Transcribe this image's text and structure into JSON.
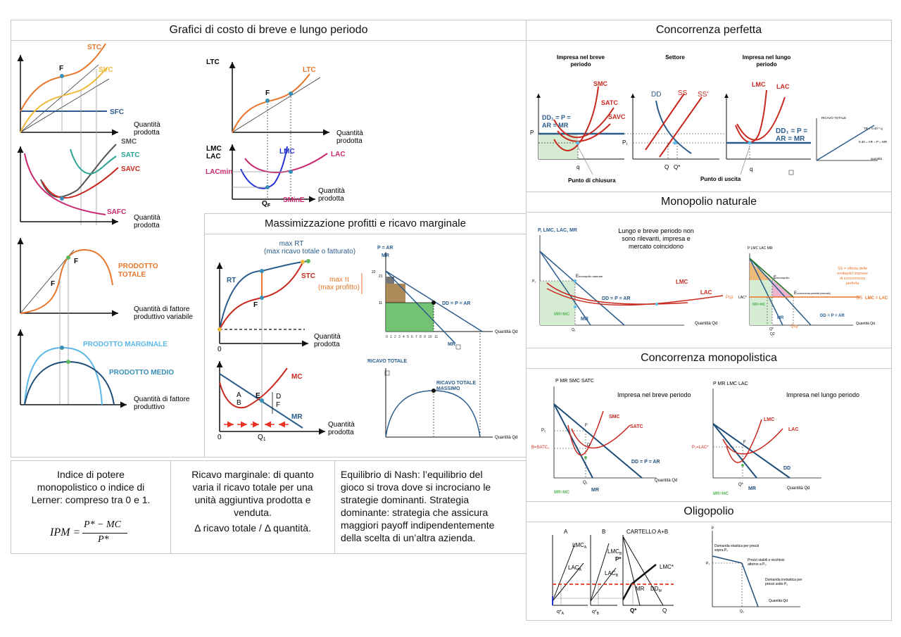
{
  "colors": {
    "orange": "#e8762b",
    "red": "#c8281e",
    "blue": "#2a5c8c",
    "teal": "#2aa394",
    "cyan": "#5bb8e8",
    "magenta": "#c8286e",
    "green": "#5cb85c",
    "yellow": "#f0b93b",
    "darkblue": "#1f4e79"
  },
  "panels": {
    "costs": {
      "title": "Grafici di costo di breve e lungo periodo",
      "stc": "STC",
      "svc": "SVC",
      "sfc": "SFC",
      "f": "F",
      "q_prod": [
        "Quantità",
        "prodotta"
      ],
      "smc": "SMC",
      "satc": "SATC",
      "savc": "SAVC",
      "safc": "SAFC",
      "prod_totale": [
        "PRODOTTO",
        "TOTALE"
      ],
      "q_fattore_var": [
        "Quantità di fattore",
        "produttivo variabile"
      ],
      "prod_marginale": "PRODOTTO MARGINALE",
      "prod_medio": "PRODOTTO MEDIO",
      "q_fattore": [
        "Quantità di fattore",
        "produttivo"
      ],
      "ltc": "LTC",
      "lmc_lac": [
        "LMC",
        "LAC"
      ],
      "lmc": "LMC",
      "lac": "LAC",
      "lacmin": "LACmin",
      "qf": "Q",
      "qf_sub": "F",
      "sminE": "SMinE"
    },
    "profit": {
      "title": "Massimizzazione profitti e ricavo marginale",
      "max_rt": [
        "max RT",
        "(max ricavo totale o fatturato)"
      ],
      "rt": "RT",
      "stc": "STC",
      "f": "F",
      "zero": "0",
      "max_pi": [
        "max π",
        "(max profitto)"
      ],
      "mc": "MC",
      "mr": "MR",
      "e": "E",
      "a": "A",
      "b": "B",
      "d": "D",
      "ff": "F",
      "q1": "Q",
      "q1_sub": "1",
      "p_ar": "P = AR",
      "mr_lbl": "MR",
      "dd": "DD = P = AR",
      "qd": "Quantità Qd",
      "ricavo_totale": "RICAVO TOTALE",
      "rt_massimo": [
        "RICAVO TOTALE",
        "MASSIMO"
      ],
      "ticks_y": [
        "22",
        "21",
        "11"
      ],
      "ticks_x": [
        "0",
        "1",
        "2",
        "3",
        "4",
        "5",
        "6",
        "7",
        "8",
        "9",
        "10",
        "11"
      ]
    },
    "perfect": {
      "title": "Concorrenza perfetta",
      "h1": [
        "Impresa nel breve",
        "periodo"
      ],
      "h2": "Settore",
      "h3": [
        "Impresa nel lungo",
        "periodo"
      ],
      "smc": "SMC",
      "satc": "SATC",
      "savc": "SAVC",
      "dd1": [
        "DD₁ = P =",
        "AR = MR"
      ],
      "p": "P",
      "q": "q",
      "punto_chiusura": "Punto di chiusura",
      "dd": "DD",
      "ss": "SS",
      "ss2": "SS'",
      "p1": "P₁",
      "qq": "Q",
      "qstar": "Q*",
      "lmc": "LMC",
      "lac": "LAC",
      "dd1b": [
        "DD₁ = P =",
        "AR = MR"
      ],
      "punto_uscita": "Punto di uscita",
      "ricavo_totale": "RICAVO TOTALE",
      "tr": "TR = 0,40 * q",
      "avg": "0,40 = AR = P = MR",
      "quantita": "quantità"
    },
    "natural": {
      "title": "Monopolio naturale",
      "yaxis": "P, LMC, LAC, MR",
      "note": [
        "Lungo e breve periodo non",
        "sono rilevanti, impresa e",
        "mercato coincidono"
      ],
      "emon": "E",
      "emon_sub": "monopolio naturale",
      "lmc": "LMC",
      "lac": "LAC",
      "dd": "DD = P = AR",
      "mr": "MR",
      "mrmc": "MR=MC",
      "pcp": "Pcp",
      "qd": "Quantità Qd",
      "p1": "P₁",
      "q1": "Q₁",
      "yaxis2": "P LMC LAC MR",
      "ss": [
        "SS = offerta delle",
        "molteplici imprese",
        "di concorrenza",
        "perfetta"
      ],
      "ss_lbl": "SS",
      "lmc_lac": "LMC = LAC",
      "lac_star": "LAC*",
      "emon2": "E",
      "emon2_sub": "monopolio",
      "ecp": "E",
      "ecp_sub": "concorrenza perfetta (mercato)",
      "dd2": "DD = P = AR",
      "mr2": "MR",
      "mrmc2": "MR=MC",
      "qstar": "Q*",
      "qcp": "Qcp",
      "q2": "Q2"
    },
    "monop": {
      "title": "Concorrenza monopolistica",
      "yaxis1": "P MR SMC SATC",
      "h1": "Impresa nel breve periodo",
      "smc": "SMC",
      "satc": "SATC",
      "f": "F",
      "d": "D",
      "p1": "P₁",
      "bsatc": "B=SATC₁",
      "dd": "DD = P = AR",
      "mrmc": "MR=MC",
      "q1": "Q₁",
      "mr": "MR",
      "qd": "Quantità Qd",
      "yaxis2": "P MR LMC LAC",
      "h2": "Impresa nel lungo periodo",
      "lmc": "LMC",
      "lac": "LAC",
      "p1lac": "P₁=LAC*",
      "dd2": "DD",
      "mrmc2": "MR=MC",
      "qstar": "Q*",
      "mr2": "MR",
      "qd2": "Quantità Qd"
    },
    "oligo": {
      "title": "Oligopolio",
      "a": "A",
      "b": "B",
      "cartel": "CARTELLO A+B",
      "lmca": "LMC",
      "lmca_sub": "A",
      "laca": "LAC",
      "laca_sub": "A",
      "lmcb": "LMC",
      "lmcb_sub": "B",
      "lacb": "LAC",
      "lacb_sub": "B",
      "pstar": "P*",
      "lmcstar": "LMC*",
      "mr": "MR",
      "ddm": "DD",
      "ddm_sub": "M",
      "qa": "q*",
      "qa_sub": "A",
      "qb": "q*",
      "qb_sub": "B",
      "qstar": "Q*",
      "q": "Q",
      "p": "P",
      "el": [
        "Domanda elastica per prezzi",
        "sopra P₀"
      ],
      "stab": [
        "Prezzi stabili o vischiosi",
        "attorno a P₀"
      ],
      "inel": [
        "Domanda inelastica per",
        "prezzi sotto P₀"
      ],
      "p0": "P₀",
      "q0": "Q₀",
      "qd": "Quantità Qd"
    }
  },
  "textboxes": {
    "lerner": [
      "Indice di potere",
      "monopolistico o indice di",
      "Lerner: compreso tra 0 e 1."
    ],
    "lerner_formula": "IPM =",
    "lerner_num": "P* − MC",
    "lerner_den": "P*",
    "ricavo": [
      "Ricavo marginale: di quanto",
      "varia il ricavo totale per una",
      "unità aggiuntiva prodotta e",
      "venduta."
    ],
    "ricavo2": "Δ ricavo totale / Δ quantità.",
    "nash": [
      "Equilibrio di Nash: l’equilibrio del",
      "gioco si trova dove si incrociano le",
      "strategie dominanti. Strategia",
      "dominante: strategia che assicura",
      "maggiori payoff indipendentemente",
      "della scelta di un’altra azienda."
    ]
  }
}
